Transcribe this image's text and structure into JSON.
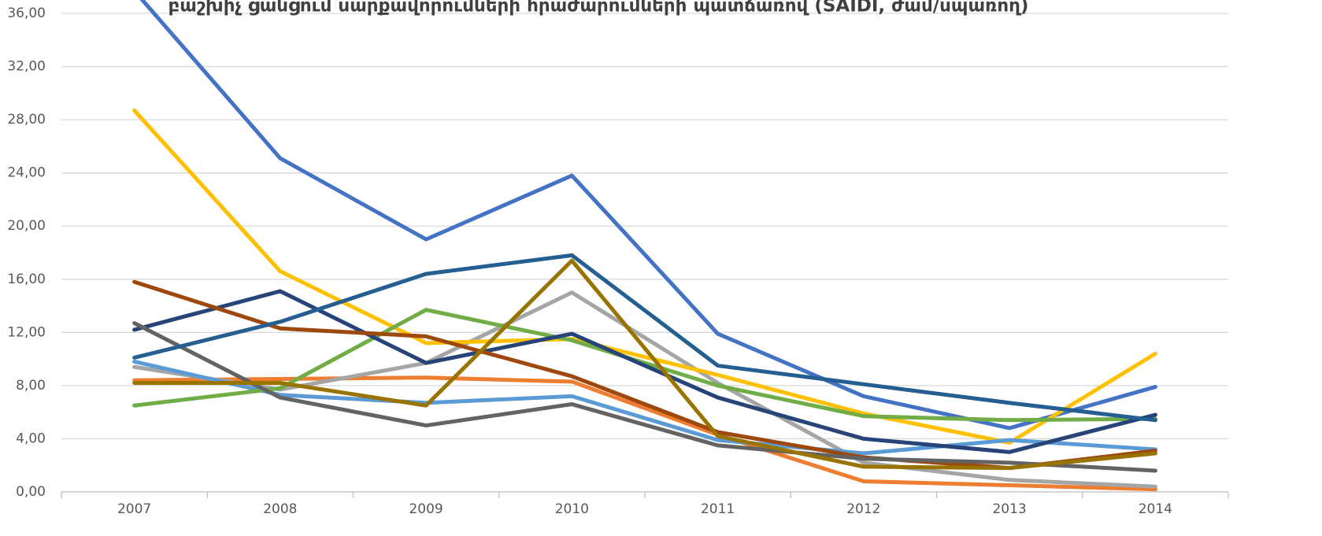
{
  "chart_data": {
    "type": "line",
    "title": "բաշխիչ ցանցում սարքավորումների հրաժարումների պատճառով (SAIDI, ժամ/սպառող)",
    "categories": [
      "2007",
      "2008",
      "2009",
      "2010",
      "2011",
      "2012",
      "2013",
      "2014"
    ],
    "ylim": [
      0,
      36
    ],
    "yticks": [
      {
        "value": 0,
        "label": "0,00"
      },
      {
        "value": 4,
        "label": "4,00"
      },
      {
        "value": 8,
        "label": "8,00"
      },
      {
        "value": 12,
        "label": "12,00"
      },
      {
        "value": 16,
        "label": "16,00"
      },
      {
        "value": 20,
        "label": "20,00"
      },
      {
        "value": 24,
        "label": "24,00"
      },
      {
        "value": 28,
        "label": "28,00"
      },
      {
        "value": 32,
        "label": "32,00"
      },
      {
        "value": 36,
        "label": "36,00"
      }
    ],
    "grid": true,
    "series": [
      {
        "color": "#4472c4",
        "values": [
          37.7,
          25.1,
          19.0,
          23.8,
          11.9,
          7.2,
          4.8,
          7.9
        ]
      },
      {
        "color": "#ed7d31",
        "values": [
          8.4,
          8.5,
          8.6,
          8.3,
          4.3,
          0.8,
          0.5,
          0.2
        ]
      },
      {
        "color": "#a5a5a5",
        "values": [
          9.4,
          7.7,
          9.7,
          15.0,
          8.2,
          2.2,
          0.9,
          0.4
        ]
      },
      {
        "color": "#ffc000",
        "values": [
          28.7,
          16.6,
          11.2,
          11.5,
          8.8,
          5.9,
          3.7,
          10.4
        ]
      },
      {
        "color": "#5b9bd5",
        "values": [
          9.8,
          7.3,
          6.7,
          7.2,
          3.9,
          2.9,
          3.9,
          3.2
        ]
      },
      {
        "color": "#70ad47",
        "values": [
          6.5,
          7.8,
          13.7,
          11.4,
          8.0,
          5.7,
          5.4,
          5.5
        ]
      },
      {
        "color": "#264478",
        "values": [
          12.2,
          15.1,
          9.7,
          11.9,
          7.1,
          4.0,
          3.0,
          5.8
        ]
      },
      {
        "color": "#9e480e",
        "values": [
          15.8,
          12.3,
          11.7,
          8.7,
          4.5,
          2.6,
          1.8,
          3.1
        ]
      },
      {
        "color": "#636363",
        "values": [
          12.7,
          7.1,
          5.0,
          6.6,
          3.5,
          2.5,
          2.2,
          1.6
        ]
      },
      {
        "color": "#997300",
        "values": [
          8.2,
          8.2,
          6.5,
          17.4,
          4.2,
          1.9,
          1.8,
          2.9
        ]
      },
      {
        "color": "#255e91",
        "values": [
          10.1,
          12.8,
          16.4,
          17.8,
          9.5,
          8.1,
          6.7,
          5.4
        ]
      }
    ]
  }
}
